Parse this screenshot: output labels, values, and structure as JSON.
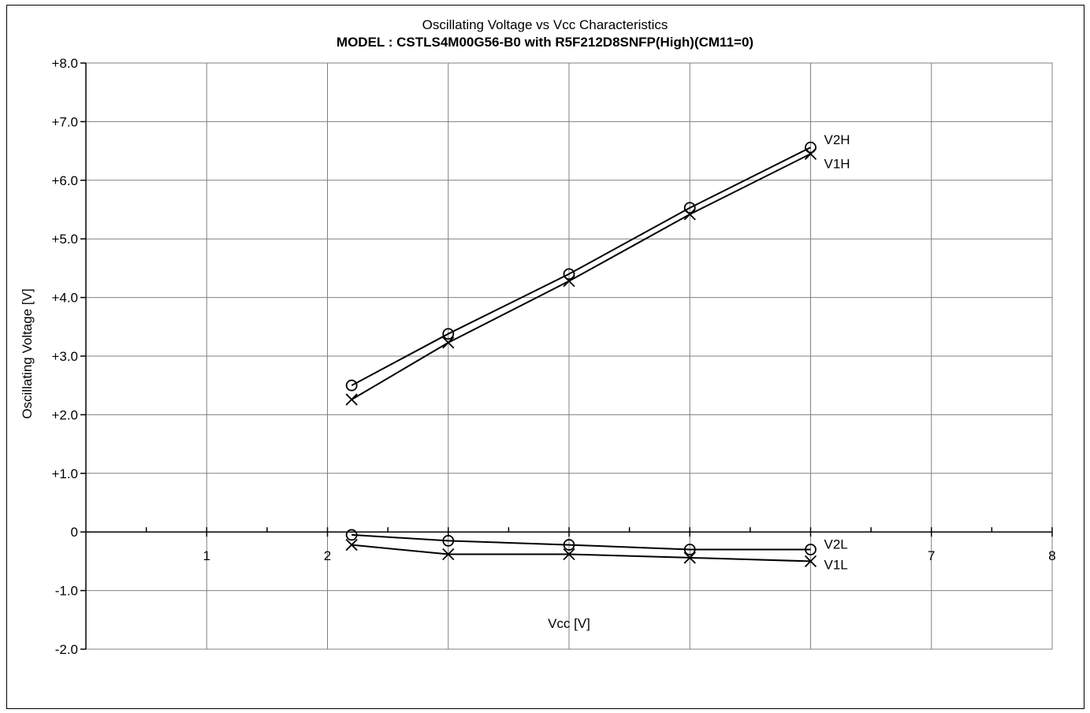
{
  "chart_data": {
    "type": "line",
    "title": "Oscillating Voltage vs Vcc Characteristics",
    "subtitle": "MODEL : CSTLS4M00G56-B0 with R5F212D8SNFP(High)(CM11=0)",
    "xlabel": "Vcc [V]",
    "ylabel": "Oscillating Voltage [V]",
    "xlim": [
      0,
      8
    ],
    "ylim": [
      -2.0,
      8.0
    ],
    "grid": true,
    "x_ticks": [
      {
        "value": 1,
        "label": "1"
      },
      {
        "value": 2,
        "label": "2"
      },
      {
        "value": 7,
        "label": "7"
      },
      {
        "value": 8,
        "label": "8"
      }
    ],
    "y_ticks": [
      {
        "value": 8,
        "label": "+8.0"
      },
      {
        "value": 7,
        "label": "+7.0"
      },
      {
        "value": 6,
        "label": "+6.0"
      },
      {
        "value": 5,
        "label": "+5.0"
      },
      {
        "value": 4,
        "label": "+4.0"
      },
      {
        "value": 3,
        "label": "+3.0"
      },
      {
        "value": 2,
        "label": "+2.0"
      },
      {
        "value": 1,
        "label": "+1.0"
      },
      {
        "value": 0,
        "label": "0"
      },
      {
        "value": -1,
        "label": "-1.0"
      },
      {
        "value": -2,
        "label": "-2.0"
      }
    ],
    "series": [
      {
        "name": "V2H",
        "marker": "circle",
        "x": [
          2.2,
          3.0,
          4.0,
          5.0,
          6.0
        ],
        "y": [
          2.5,
          3.38,
          4.4,
          5.53,
          6.56
        ]
      },
      {
        "name": "V1H",
        "marker": "cross",
        "x": [
          2.2,
          3.0,
          4.0,
          5.0,
          6.0
        ],
        "y": [
          2.26,
          3.23,
          4.28,
          5.42,
          6.45
        ]
      },
      {
        "name": "V2L",
        "marker": "circle",
        "x": [
          2.2,
          3.0,
          4.0,
          5.0,
          6.0
        ],
        "y": [
          -0.05,
          -0.15,
          -0.22,
          -0.3,
          -0.3
        ]
      },
      {
        "name": "V1L",
        "marker": "cross",
        "x": [
          2.2,
          3.0,
          4.0,
          5.0,
          6.0
        ],
        "y": [
          -0.22,
          -0.38,
          -0.38,
          -0.44,
          -0.5
        ]
      }
    ]
  }
}
